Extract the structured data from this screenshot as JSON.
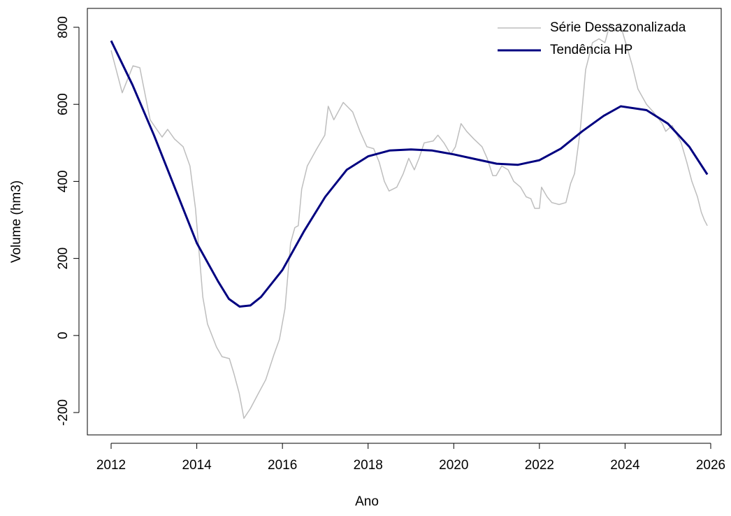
{
  "chart_data": {
    "type": "line",
    "xlabel": "Ano",
    "ylabel": "Volume (hm3)",
    "xlim": [
      2011.445,
      2026.245
    ],
    "xticks": [
      2012,
      2014,
      2016,
      2018,
      2020,
      2022,
      2024,
      2026
    ],
    "ylim": [
      -258,
      849
    ],
    "yticks": [
      -200,
      0,
      200,
      400,
      600,
      800
    ],
    "legend": "top-right",
    "grid": false,
    "series": [
      {
        "name": "Série Dessazonalizada",
        "color": "#bebebe",
        "width": 1.5,
        "x": [
          2012.0,
          2012.26,
          2012.51,
          2012.67,
          2012.91,
          2013.19,
          2013.32,
          2013.48,
          2013.68,
          2013.84,
          2013.97,
          2014.14,
          2014.25,
          2014.46,
          2014.59,
          2014.76,
          2014.87,
          2014.99,
          2015.1,
          2015.25,
          2015.44,
          2015.61,
          2015.8,
          2015.93,
          2016.06,
          2016.19,
          2016.29,
          2016.37,
          2016.45,
          2016.58,
          2016.78,
          2016.99,
          2017.07,
          2017.2,
          2017.42,
          2017.64,
          2017.81,
          2017.97,
          2018.13,
          2018.26,
          2018.38,
          2018.49,
          2018.67,
          2018.82,
          2018.95,
          2019.08,
          2019.19,
          2019.31,
          2019.52,
          2019.63,
          2019.77,
          2019.93,
          2020.04,
          2020.17,
          2020.3,
          2020.47,
          2020.66,
          2020.78,
          2020.91,
          2020.99,
          2021.12,
          2021.27,
          2021.4,
          2021.56,
          2021.69,
          2021.8,
          2021.89,
          2022.0,
          2022.05,
          2022.18,
          2022.29,
          2022.46,
          2022.62,
          2022.73,
          2022.82,
          2022.95,
          2023.08,
          2023.24,
          2023.39,
          2023.53,
          2023.65,
          2023.76,
          2023.88,
          2024.04,
          2024.17,
          2024.3,
          2024.5,
          2024.66,
          2024.87,
          2024.95,
          2025.1,
          2025.31,
          2025.44,
          2025.56,
          2025.69,
          2025.78,
          2025.85,
          2025.92
        ],
        "values": [
          740,
          630,
          700,
          695,
          560,
          515,
          535,
          510,
          490,
          440,
          330,
          100,
          30,
          -30,
          -55,
          -60,
          -100,
          -150,
          -215,
          -190,
          -150,
          -115,
          -50,
          -10,
          70,
          240,
          280,
          285,
          380,
          440,
          480,
          520,
          595,
          560,
          605,
          580,
          530,
          490,
          485,
          450,
          400,
          375,
          385,
          420,
          460,
          430,
          460,
          500,
          505,
          520,
          500,
          470,
          490,
          550,
          530,
          510,
          490,
          460,
          415,
          415,
          440,
          430,
          400,
          385,
          360,
          355,
          330,
          330,
          385,
          360,
          345,
          340,
          345,
          395,
          420,
          530,
          690,
          760,
          770,
          760,
          810,
          790,
          810,
          750,
          700,
          640,
          600,
          580,
          550,
          530,
          545,
          500,
          450,
          400,
          360,
          320,
          300,
          285
        ]
      },
      {
        "name": "Tendência HP",
        "color": "#000080",
        "width": 3,
        "x": [
          2012.0,
          2012.5,
          2013.0,
          2013.5,
          2014.0,
          2014.5,
          2014.75,
          2015.0,
          2015.25,
          2015.5,
          2016.0,
          2016.5,
          2017.0,
          2017.5,
          2018.0,
          2018.5,
          2019.0,
          2019.5,
          2020.0,
          2020.5,
          2021.0,
          2021.5,
          2022.0,
          2022.5,
          2023.0,
          2023.5,
          2023.9,
          2024.5,
          2025.0,
          2025.5,
          2025.92
        ],
        "values": [
          765,
          650,
          520,
          380,
          240,
          140,
          95,
          75,
          78,
          100,
          170,
          270,
          360,
          430,
          465,
          480,
          483,
          480,
          470,
          458,
          446,
          443,
          455,
          485,
          530,
          570,
          595,
          585,
          550,
          490,
          418
        ]
      }
    ]
  }
}
